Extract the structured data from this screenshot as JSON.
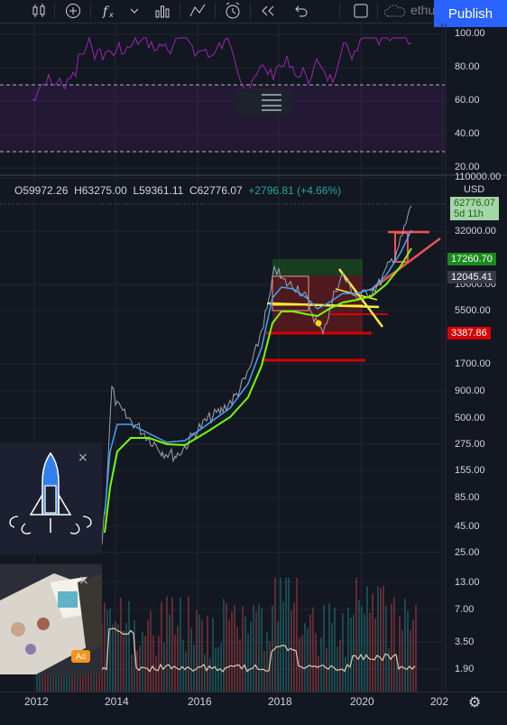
{
  "toolbar": {
    "publish_label": "Publish",
    "symbol_hint": "ethu",
    "icons": [
      "candles-icon",
      "add-indicator-icon",
      "fx-icon",
      "chevron-down-icon",
      "bar-chart-icon",
      "drawing-icon",
      "alert-icon",
      "replay-icon",
      "undo-icon",
      "layout-icon",
      "cloud-icon"
    ]
  },
  "rsi_axis": [
    "100.00",
    "80.00",
    "60.00",
    "40.00",
    "20.00"
  ],
  "ohlc": {
    "open": "O59972.26",
    "high": "H63275.00",
    "low": "L59361.11",
    "close": "C62776.07",
    "change": "+2796.81 (+4.66%)"
  },
  "price_axis": [
    "110000.00",
    "32000.00",
    "10000.00",
    "5500.00",
    "1700.00",
    "900.00",
    "500.00",
    "275.00",
    "155.00",
    "85.00",
    "45.00",
    "25.00",
    "13.00",
    "7.00",
    "3.50",
    "1.90"
  ],
  "currency": "USD",
  "price_tags": {
    "last_price": "62776.07",
    "countdown": "5d 11h",
    "level_green": "17260.70",
    "level_grey": "12045.41",
    "level_red": "3387.86"
  },
  "time_axis": [
    "2012",
    "2014",
    "2016",
    "2018",
    "2020",
    "202"
  ],
  "ads": {
    "badge": "Ad",
    "close": "×"
  },
  "colors": {
    "background": "#131722",
    "accent": "#2962ff",
    "rsi": "#9c27b0",
    "green": "#26a69a",
    "red": "#f23645"
  }
}
